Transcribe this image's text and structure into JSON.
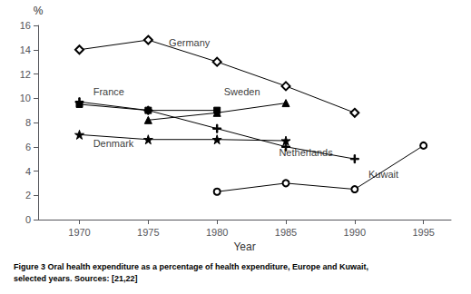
{
  "chart_data": {
    "type": "line",
    "xlabel": "Year",
    "ylabel": "%",
    "xlim": [
      1967,
      1997
    ],
    "xticks": [
      1970,
      1975,
      1980,
      1985,
      1990,
      1995
    ],
    "ylim": [
      0,
      16
    ],
    "yticks": [
      0,
      2,
      4,
      6,
      8,
      10,
      12,
      14,
      16
    ],
    "grid": false,
    "color": "#000000",
    "series": [
      {
        "name": "Germany",
        "x": [
          1970,
          1975,
          1980,
          1985,
          1990
        ],
        "values": [
          14.0,
          14.8,
          13.0,
          11.0,
          8.8
        ],
        "marker": "diamond-open"
      },
      {
        "name": "France",
        "x": [
          1970,
          1975,
          1980
        ],
        "values": [
          9.5,
          9.0,
          9.0
        ],
        "marker": "square"
      },
      {
        "name": "Sweden",
        "x": [
          1975,
          1980,
          1985
        ],
        "values": [
          8.2,
          8.8,
          9.6
        ],
        "marker": "triangle"
      },
      {
        "name": "Denmark",
        "x": [
          1970,
          1975,
          1980,
          1985
        ],
        "values": [
          7.0,
          6.6,
          6.6,
          6.5
        ],
        "marker": "star"
      },
      {
        "name": "Netherlands",
        "x": [
          1970,
          1975,
          1980,
          1985,
          1990
        ],
        "values": [
          9.7,
          9.0,
          7.5,
          6.0,
          5.0
        ],
        "marker": "plus"
      },
      {
        "name": "Kuwait",
        "x": [
          1980,
          1985,
          1990,
          1995
        ],
        "values": [
          2.3,
          3.0,
          2.5,
          6.1
        ],
        "marker": "circle-open"
      }
    ],
    "annotations": [
      {
        "text": "Germany",
        "x": 1976.5,
        "y": 14.2
      },
      {
        "text": "France",
        "x": 1971.0,
        "y": 10.1
      },
      {
        "text": "Sweden",
        "x": 1980.5,
        "y": 10.15
      },
      {
        "text": "Denmark",
        "x": 1971.0,
        "y": 5.85
      },
      {
        "text": "Netherlands",
        "x": 1984.5,
        "y": 5.1
      },
      {
        "text": "Kuwait",
        "x": 1991.0,
        "y": 3.3
      }
    ],
    "caption": [
      "Figure 3 Oral health expenditure as a percentage of health expenditure, Europe and Kuwait,",
      "selected years. Sources: [21,22]"
    ]
  }
}
